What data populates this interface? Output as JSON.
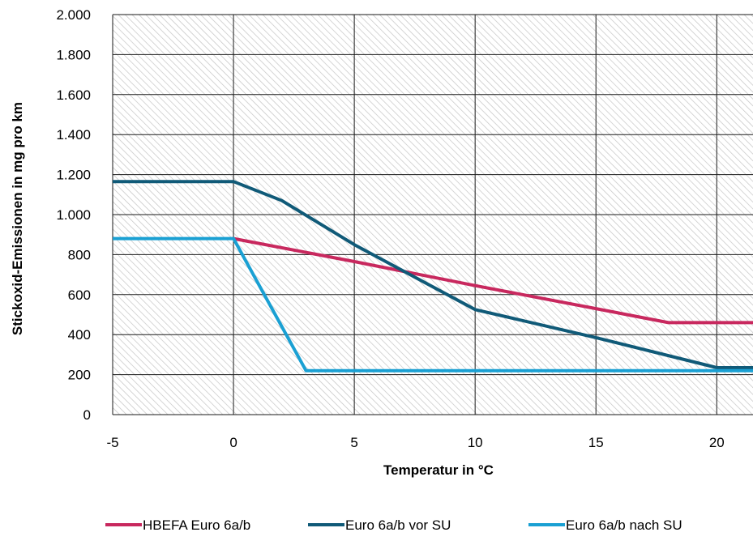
{
  "chart_data": {
    "type": "line",
    "xlabel": "Temperatur in °C",
    "ylabel": "Stickoxid-Emissionen  in mg pro km",
    "xlim": [
      -5,
      21.5
    ],
    "ylim": [
      0,
      2000
    ],
    "x_ticks": [
      -5,
      0,
      5,
      10,
      15,
      20
    ],
    "x_tick_labels": [
      "-5",
      "0",
      "5",
      "10",
      "15",
      "20"
    ],
    "y_ticks": [
      0,
      200,
      400,
      600,
      800,
      1000,
      1200,
      1400,
      1600,
      1800,
      2000
    ],
    "y_tick_labels": [
      "0",
      "200",
      "400",
      "600",
      "800",
      "1.000",
      "1.200",
      "1.400",
      "1.600",
      "1.800",
      "2.000"
    ],
    "grid": true,
    "legend_position": "bottom",
    "series": [
      {
        "name": "HBEFA Euro 6a/b",
        "color": "#c8285e",
        "points": [
          [
            0,
            880
          ],
          [
            5,
            765
          ],
          [
            10,
            645
          ],
          [
            15,
            530
          ],
          [
            18,
            460
          ],
          [
            21.5,
            460
          ]
        ]
      },
      {
        "name": "Euro 6a/b vor SU",
        "color": "#105a78",
        "points": [
          [
            -5,
            1165
          ],
          [
            0,
            1165
          ],
          [
            2,
            1070
          ],
          [
            5,
            850
          ],
          [
            10,
            525
          ],
          [
            15,
            385
          ],
          [
            20,
            235
          ],
          [
            21.5,
            235
          ]
        ]
      },
      {
        "name": "Euro 6a/b nach SU",
        "color": "#1aa0d3",
        "points": [
          [
            -5,
            880
          ],
          [
            0,
            880
          ],
          [
            3,
            220
          ],
          [
            21.5,
            220
          ]
        ]
      }
    ]
  }
}
